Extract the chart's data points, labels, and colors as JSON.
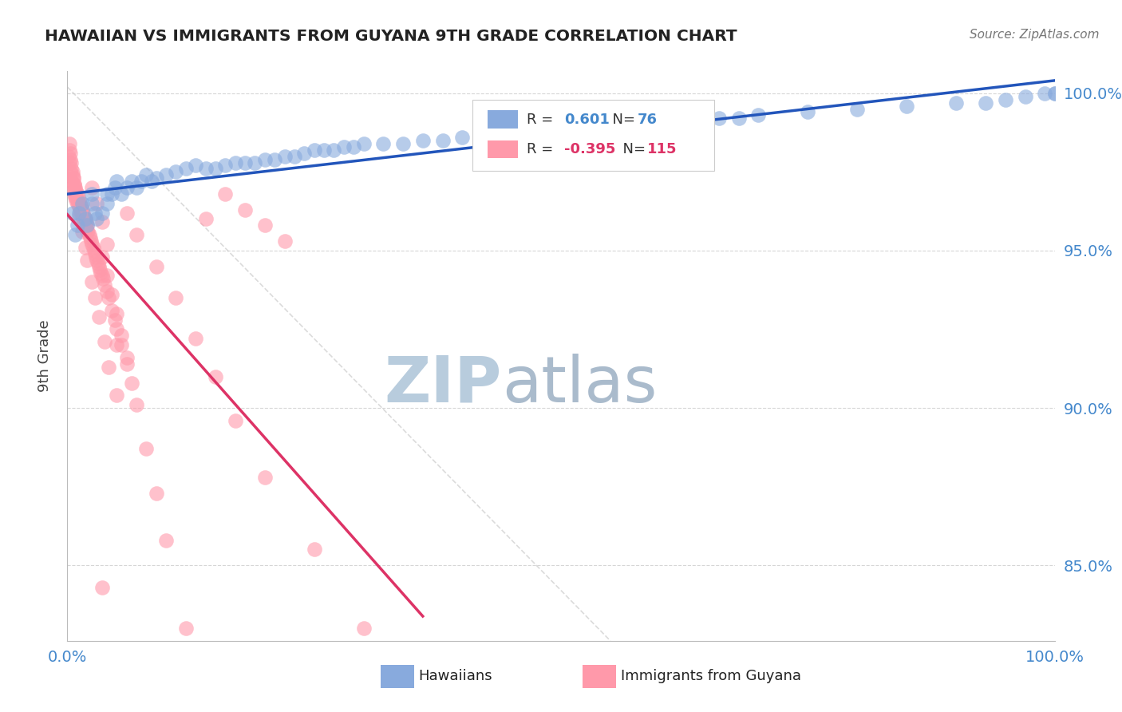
{
  "title": "HAWAIIAN VS IMMIGRANTS FROM GUYANA 9TH GRADE CORRELATION CHART",
  "source_text": "Source: ZipAtlas.com",
  "ylabel": "9th Grade",
  "xmin": 0.0,
  "xmax": 1.0,
  "ymin": 0.826,
  "ymax": 1.007,
  "ytick_labels": [
    "85.0%",
    "90.0%",
    "95.0%",
    "100.0%"
  ],
  "ytick_positions": [
    0.85,
    0.9,
    0.95,
    1.0
  ],
  "hawaiians_R": "0.601",
  "hawaiians_N": "76",
  "guyana_R": "-0.395",
  "guyana_N": "115",
  "blue_color": "#88AADD",
  "pink_color": "#FF99AA",
  "blue_line_color": "#2255BB",
  "pink_line_color": "#DD3366",
  "tick_color": "#4488CC",
  "watermark_ZIP_color": "#B8CCDD",
  "watermark_atlas_color": "#AABBCC",
  "background_color": "#FFFFFF",
  "hawaiians_x": [
    0.005,
    0.008,
    0.01,
    0.012,
    0.015,
    0.018,
    0.02,
    0.025,
    0.025,
    0.028,
    0.03,
    0.035,
    0.04,
    0.04,
    0.045,
    0.048,
    0.05,
    0.055,
    0.06,
    0.065,
    0.07,
    0.075,
    0.08,
    0.085,
    0.09,
    0.1,
    0.11,
    0.12,
    0.13,
    0.14,
    0.15,
    0.16,
    0.17,
    0.18,
    0.19,
    0.2,
    0.21,
    0.22,
    0.23,
    0.24,
    0.25,
    0.26,
    0.27,
    0.28,
    0.29,
    0.3,
    0.32,
    0.34,
    0.36,
    0.38,
    0.4,
    0.42,
    0.44,
    0.46,
    0.48,
    0.5,
    0.52,
    0.54,
    0.56,
    0.58,
    0.6,
    0.62,
    0.64,
    0.66,
    0.68,
    0.7,
    0.75,
    0.8,
    0.85,
    0.9,
    0.93,
    0.95,
    0.97,
    0.99,
    1.0,
    1.0
  ],
  "hawaiians_y": [
    0.962,
    0.955,
    0.958,
    0.962,
    0.965,
    0.96,
    0.958,
    0.965,
    0.968,
    0.962,
    0.96,
    0.962,
    0.965,
    0.968,
    0.968,
    0.97,
    0.972,
    0.968,
    0.97,
    0.972,
    0.97,
    0.972,
    0.974,
    0.972,
    0.973,
    0.974,
    0.975,
    0.976,
    0.977,
    0.976,
    0.976,
    0.977,
    0.978,
    0.978,
    0.978,
    0.979,
    0.979,
    0.98,
    0.98,
    0.981,
    0.982,
    0.982,
    0.982,
    0.983,
    0.983,
    0.984,
    0.984,
    0.984,
    0.985,
    0.985,
    0.986,
    0.986,
    0.987,
    0.987,
    0.987,
    0.988,
    0.988,
    0.989,
    0.989,
    0.99,
    0.99,
    0.991,
    0.991,
    0.992,
    0.992,
    0.993,
    0.994,
    0.995,
    0.996,
    0.997,
    0.997,
    0.998,
    0.999,
    1.0,
    1.0,
    1.0
  ],
  "guyana_x": [
    0.001,
    0.002,
    0.002,
    0.003,
    0.003,
    0.004,
    0.004,
    0.005,
    0.005,
    0.006,
    0.006,
    0.007,
    0.007,
    0.008,
    0.008,
    0.009,
    0.009,
    0.01,
    0.01,
    0.011,
    0.011,
    0.012,
    0.012,
    0.013,
    0.013,
    0.014,
    0.014,
    0.015,
    0.015,
    0.016,
    0.016,
    0.017,
    0.017,
    0.018,
    0.018,
    0.019,
    0.019,
    0.02,
    0.02,
    0.021,
    0.022,
    0.023,
    0.024,
    0.025,
    0.026,
    0.027,
    0.028,
    0.029,
    0.03,
    0.031,
    0.032,
    0.033,
    0.034,
    0.035,
    0.036,
    0.038,
    0.04,
    0.042,
    0.045,
    0.048,
    0.05,
    0.055,
    0.06,
    0.065,
    0.07,
    0.08,
    0.09,
    0.1,
    0.12,
    0.14,
    0.16,
    0.18,
    0.2,
    0.22,
    0.035,
    0.04,
    0.045,
    0.05,
    0.055,
    0.06,
    0.002,
    0.003,
    0.004,
    0.005,
    0.006,
    0.007,
    0.008,
    0.009,
    0.01,
    0.012,
    0.015,
    0.018,
    0.02,
    0.025,
    0.028,
    0.032,
    0.038,
    0.042,
    0.05,
    0.06,
    0.07,
    0.09,
    0.11,
    0.13,
    0.15,
    0.17,
    0.2,
    0.25,
    0.3,
    0.025,
    0.03,
    0.035,
    0.04,
    0.035,
    0.05
  ],
  "guyana_y": [
    0.98,
    0.978,
    0.982,
    0.975,
    0.979,
    0.972,
    0.976,
    0.971,
    0.974,
    0.969,
    0.973,
    0.968,
    0.971,
    0.967,
    0.97,
    0.966,
    0.969,
    0.966,
    0.968,
    0.965,
    0.967,
    0.964,
    0.966,
    0.963,
    0.965,
    0.962,
    0.964,
    0.961,
    0.963,
    0.96,
    0.962,
    0.959,
    0.961,
    0.958,
    0.96,
    0.957,
    0.959,
    0.956,
    0.958,
    0.956,
    0.955,
    0.954,
    0.953,
    0.952,
    0.951,
    0.95,
    0.949,
    0.948,
    0.947,
    0.946,
    0.945,
    0.944,
    0.943,
    0.942,
    0.941,
    0.939,
    0.937,
    0.935,
    0.931,
    0.928,
    0.925,
    0.92,
    0.914,
    0.908,
    0.901,
    0.887,
    0.873,
    0.858,
    0.83,
    0.96,
    0.968,
    0.963,
    0.958,
    0.953,
    0.948,
    0.942,
    0.936,
    0.93,
    0.923,
    0.916,
    0.984,
    0.981,
    0.978,
    0.975,
    0.973,
    0.971,
    0.969,
    0.967,
    0.965,
    0.961,
    0.956,
    0.951,
    0.947,
    0.94,
    0.935,
    0.929,
    0.921,
    0.913,
    0.904,
    0.962,
    0.955,
    0.945,
    0.935,
    0.922,
    0.91,
    0.896,
    0.878,
    0.855,
    0.83,
    0.97,
    0.965,
    0.959,
    0.952,
    0.843,
    0.92
  ]
}
